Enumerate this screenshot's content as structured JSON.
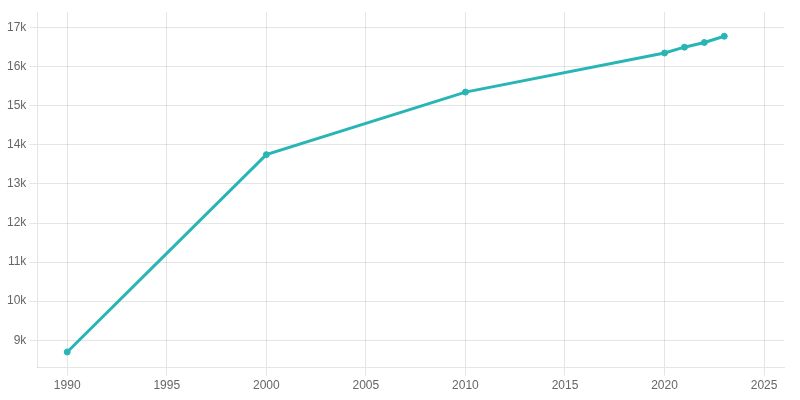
{
  "chart_data": {
    "type": "line",
    "x": [
      1990,
      2000,
      2010,
      2020,
      2021,
      2022,
      2023
    ],
    "values": [
      8700,
      13750,
      15350,
      16350,
      16500,
      16620,
      16780
    ],
    "color": "#29b5b5",
    "marker": "circle",
    "xlim": [
      1988.5,
      2026
    ],
    "ylim": [
      8300,
      17400
    ],
    "xticks": [
      1990,
      1995,
      2000,
      2005,
      2010,
      2015,
      2020,
      2025
    ],
    "yticks": [
      {
        "value": 9000,
        "label": "9k"
      },
      {
        "value": 10000,
        "label": "10k"
      },
      {
        "value": 11000,
        "label": "11k"
      },
      {
        "value": 12000,
        "label": "12k"
      },
      {
        "value": 13000,
        "label": "13k"
      },
      {
        "value": 14000,
        "label": "14k"
      },
      {
        "value": 15000,
        "label": "15k"
      },
      {
        "value": 16000,
        "label": "16k"
      },
      {
        "value": 17000,
        "label": "17k"
      }
    ],
    "grid": true
  }
}
